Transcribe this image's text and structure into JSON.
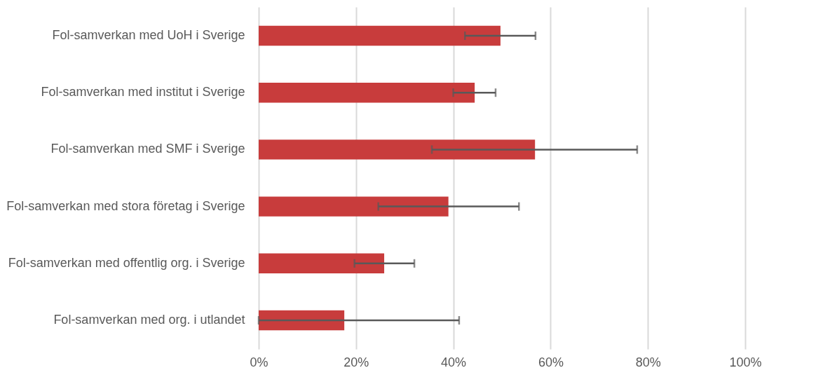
{
  "chart_data": {
    "type": "bar",
    "orientation": "horizontal",
    "categories": [
      "Fol-samverkan med UoH i Sverige",
      "Fol-samverkan med institut i Sverige",
      "Fol-samverkan med SMF i Sverige",
      "Fol-samverkan med stora företag i Sverige",
      "Fol-samverkan med offentlig org. i Sverige",
      "Fol-samverkan med org. i utlandet"
    ],
    "values": [
      49.7,
      44.4,
      56.8,
      39,
      25.8,
      17.6
    ],
    "errors": [
      [
        42.4,
        56.9
      ],
      [
        40,
        48.7
      ],
      [
        35.6,
        77.8
      ],
      [
        24.6,
        53.5
      ],
      [
        19.7,
        32
      ],
      [
        0,
        41.2
      ]
    ],
    "color": "#c83c3c",
    "xlim": [
      0,
      100
    ],
    "xticks": [
      {
        "value": 0,
        "label": "0%"
      },
      {
        "value": 20,
        "label": "20%"
      },
      {
        "value": 40,
        "label": "40%"
      },
      {
        "value": 60,
        "label": "60%"
      },
      {
        "value": 80,
        "label": "80%"
      },
      {
        "value": 100,
        "label": "100%"
      }
    ],
    "grid": "x"
  }
}
